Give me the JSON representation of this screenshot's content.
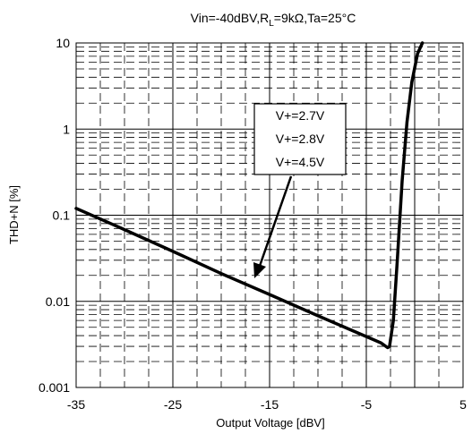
{
  "chart_data": {
    "type": "line",
    "title_prefix": "Vin=-40dBV,R",
    "title_subscript": "L",
    "title_suffix": "=9kΩ,Ta=25°C",
    "xlabel": "Output Voltage [dBV]",
    "ylabel": "THD+N [%]",
    "x_scale": "linear",
    "y_scale": "log",
    "xlim": [
      -35,
      5
    ],
    "ylim": [
      0.001,
      10
    ],
    "x_ticks": [
      -35,
      -25,
      -15,
      -5,
      5
    ],
    "x_tick_labels": [
      "-35",
      "-25",
      "-15",
      "-5",
      "5"
    ],
    "y_ticks": [
      0.001,
      0.01,
      0.1,
      1,
      10
    ],
    "y_tick_labels": [
      "0.001",
      "0.01",
      "0.1",
      "1",
      "10"
    ],
    "grid": true,
    "legend_entries": [
      "V+=2.7V",
      "V+=2.8V",
      "V+=4.5V"
    ],
    "series": [
      {
        "x": [
          -35,
          -30,
          -25,
          -20,
          -15,
          -10,
          -5,
          -3.5,
          -2.8,
          -2.6,
          -2.2,
          -1.8,
          -1.3,
          -0.8,
          -0.3,
          0.3,
          0.8
        ],
        "y": [
          0.12,
          0.068,
          0.038,
          0.021,
          0.012,
          0.0068,
          0.0039,
          0.0033,
          0.0029,
          0.003,
          0.006,
          0.03,
          0.25,
          1.2,
          3.5,
          7.5,
          10
        ]
      }
    ]
  }
}
